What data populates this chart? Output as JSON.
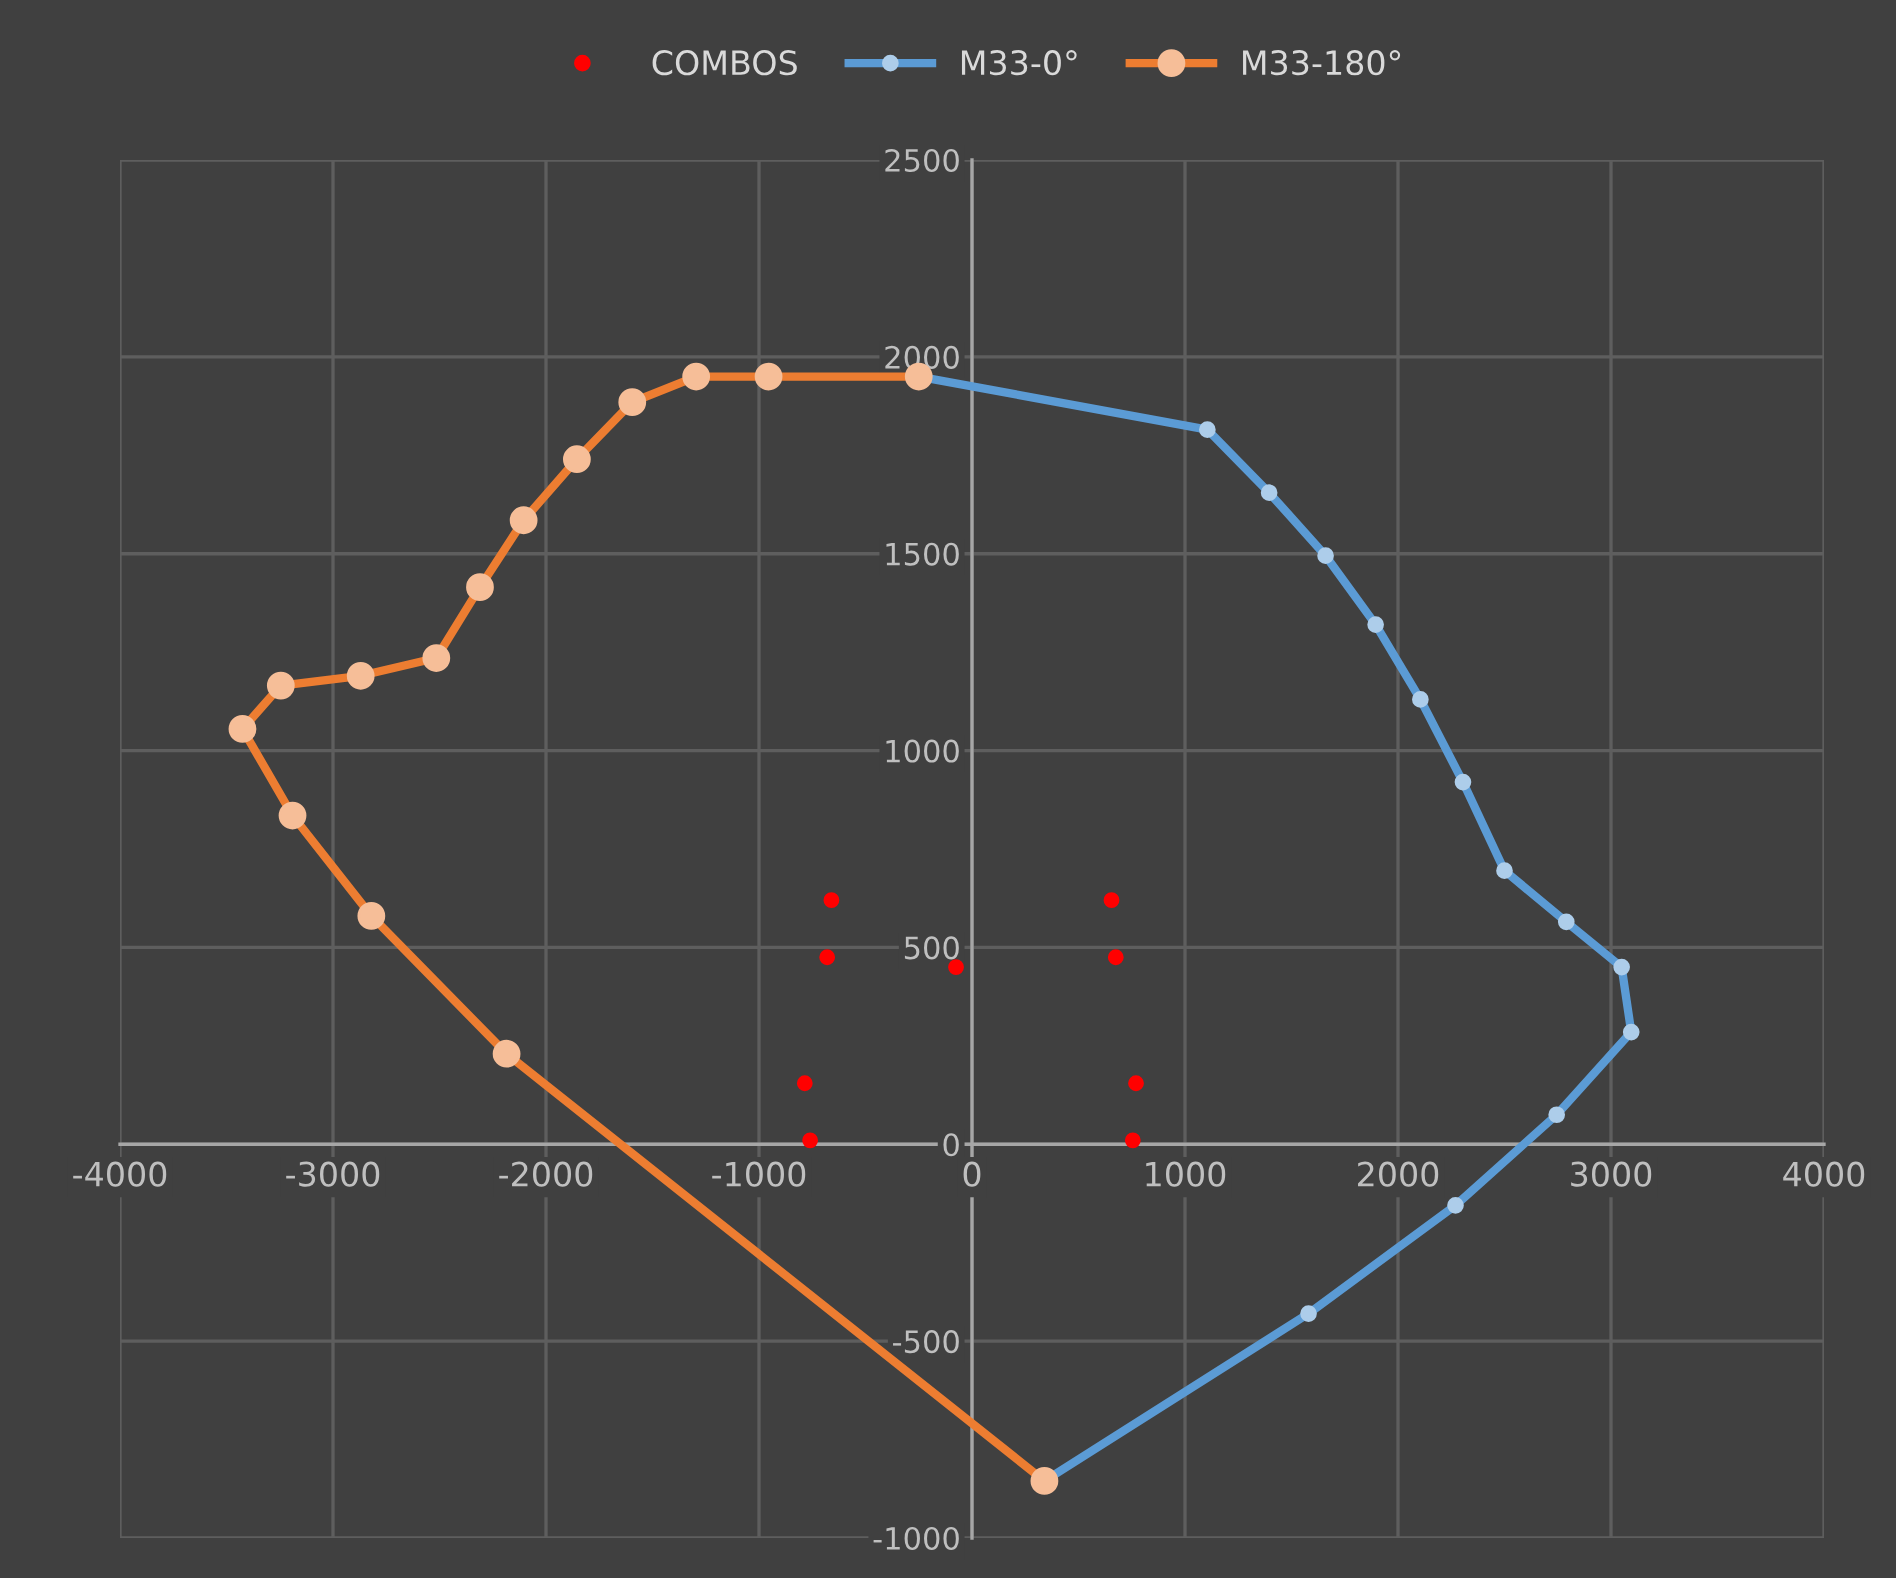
{
  "chart_data": {
    "type": "scatter",
    "legend": "top",
    "grid": true,
    "xlim": [
      -4000,
      4000
    ],
    "xticks": [
      -4000,
      -3000,
      -2000,
      -1000,
      0,
      1000,
      2000,
      3000,
      4000
    ],
    "ylim": [
      -1000,
      2500
    ],
    "yticks": [
      -1000,
      -500,
      0,
      500,
      1000,
      1500,
      2000,
      2500
    ],
    "series": [
      {
        "name": "COMBOS",
        "color": "#ff0000",
        "marker": "circle",
        "x": [
          -660,
          -680,
          -75,
          -785,
          -760,
          655,
          675,
          770,
          755
        ],
        "values": [
          620,
          475,
          450,
          155,
          10,
          620,
          475,
          155,
          10
        ]
      },
      {
        "name": "M33-0°",
        "type": "line",
        "color": "#5b9bd5",
        "marker": "circle",
        "line_style": "solid",
        "x": [
          -250,
          1105,
          1395,
          1660,
          1895,
          2105,
          2305,
          2500,
          2790,
          3050,
          3095,
          2745,
          2270,
          1580,
          340
        ],
        "values": [
          1950,
          1815,
          1655,
          1495,
          1320,
          1130,
          920,
          695,
          565,
          450,
          285,
          75,
          -155,
          -430,
          -855
        ]
      },
      {
        "name": "M33-180°",
        "type": "line",
        "color": "#ed7d31",
        "marker": "circle",
        "line_style": "solid",
        "x": [
          340,
          -2185,
          -2820,
          -3190,
          -3425,
          -3245,
          -2870,
          -2515,
          -2310,
          -2105,
          -1855,
          -1595,
          -1295,
          -955,
          -250
        ],
        "values": [
          -855,
          230,
          580,
          835,
          1055,
          1165,
          1190,
          1235,
          1415,
          1585,
          1740,
          1885,
          1950,
          1950,
          1950
        ]
      }
    ]
  }
}
